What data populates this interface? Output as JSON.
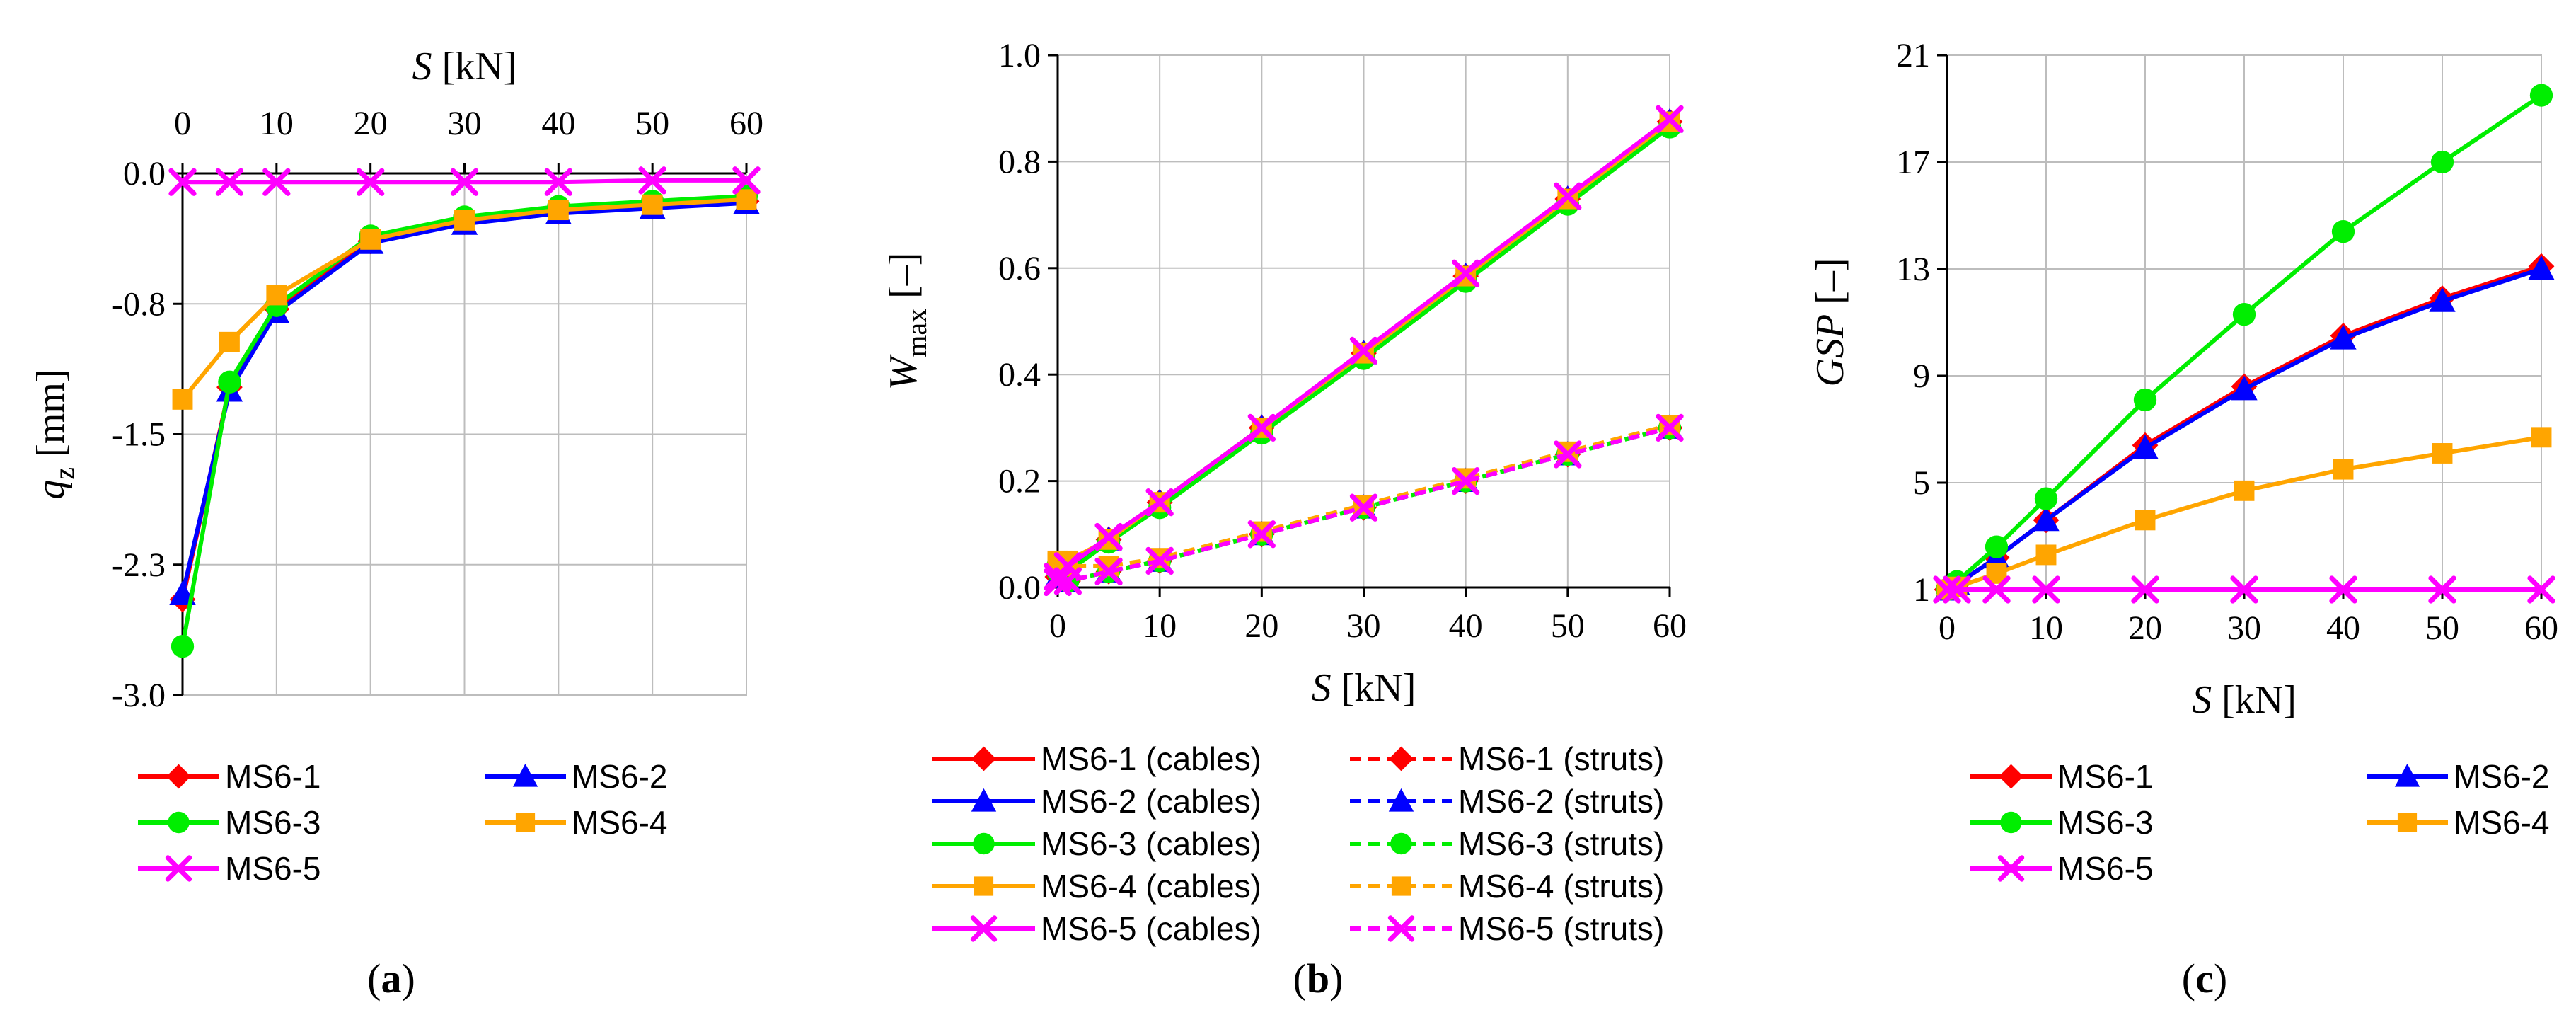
{
  "chart_data": [
    {
      "type": "line",
      "panel": "a",
      "caption": [
        "(",
        "a",
        ")"
      ],
      "xlabel": {
        "var": "S",
        "unit": " [kN]"
      },
      "ylabel": {
        "var": "q",
        "sub": "z",
        "unit": " [mm]"
      },
      "x_axis_position": "top",
      "xlim": [
        0,
        60
      ],
      "ylim": [
        -3.0,
        0.0
      ],
      "x_ticks": [
        0,
        10,
        20,
        30,
        40,
        50,
        60
      ],
      "x_tick_labels": [
        "0",
        "10",
        "20",
        "30",
        "40",
        "50",
        "60"
      ],
      "y_ticks": [
        0.0,
        -0.75,
        -1.5,
        -2.25,
        -3.0
      ],
      "y_tick_labels": [
        "0.0",
        "-0.8",
        "-1.5",
        "-2.3",
        "-3.0"
      ],
      "x": [
        0,
        5,
        10,
        20,
        30,
        40,
        50,
        60
      ],
      "legend_columns": 2,
      "series": [
        {
          "name": "MS6-1",
          "color": "#ff0000",
          "marker": "diamond",
          "dash": false,
          "values": [
            -2.45,
            -1.23,
            -0.78,
            -0.39,
            -0.28,
            -0.22,
            -0.19,
            -0.16
          ]
        },
        {
          "name": "MS6-2",
          "color": "#0000ff",
          "marker": "triangle",
          "dash": false,
          "values": [
            -2.42,
            -1.25,
            -0.8,
            -0.4,
            -0.29,
            -0.23,
            -0.2,
            -0.17
          ]
        },
        {
          "name": "MS6-3",
          "color": "#00ee00",
          "marker": "circle",
          "dash": false,
          "values": [
            -2.72,
            -1.2,
            -0.76,
            -0.36,
            -0.25,
            -0.19,
            -0.16,
            -0.13
          ]
        },
        {
          "name": "MS6-4",
          "color": "#ffa500",
          "marker": "square",
          "dash": false,
          "values": [
            -1.3,
            -0.97,
            -0.7,
            -0.38,
            -0.27,
            -0.21,
            -0.18,
            -0.15
          ]
        },
        {
          "name": "MS6-5",
          "color": "#ff00ff",
          "marker": "x",
          "dash": false,
          "values": [
            -0.05,
            -0.05,
            -0.05,
            -0.05,
            -0.05,
            -0.05,
            -0.04,
            -0.04
          ]
        }
      ]
    },
    {
      "type": "line",
      "panel": "b",
      "caption": [
        "(",
        "b",
        ")"
      ],
      "xlabel": {
        "var": "S",
        "unit": " [kN]"
      },
      "ylabel": {
        "var": "W",
        "sub": "max",
        "unit": " [–]"
      },
      "x_axis_position": "bottom",
      "xlim": [
        0,
        60
      ],
      "ylim": [
        0.0,
        1.0
      ],
      "x_ticks": [
        0,
        10,
        20,
        30,
        40,
        50,
        60
      ],
      "x_tick_labels": [
        "0",
        "10",
        "20",
        "30",
        "40",
        "50",
        "60"
      ],
      "y_ticks": [
        0.0,
        0.2,
        0.4,
        0.6,
        0.8,
        1.0
      ],
      "y_tick_labels": [
        "0.0",
        "0.2",
        "0.4",
        "0.6",
        "0.8",
        "1.0"
      ],
      "x": [
        0,
        1,
        5,
        10,
        20,
        30,
        40,
        50,
        60
      ],
      "legend_columns": 2,
      "series": [
        {
          "name": "MS6-1 (cables)",
          "color": "#ff0000",
          "marker": "diamond",
          "dash": false,
          "values": [
            0.02,
            0.035,
            0.09,
            0.16,
            0.3,
            0.44,
            0.585,
            0.73,
            0.875
          ]
        },
        {
          "name": "MS6-1 (struts)",
          "color": "#ff0000",
          "marker": "diamond",
          "dash": true,
          "values": [
            0.02,
            0.012,
            0.03,
            0.05,
            0.1,
            0.15,
            0.2,
            0.25,
            0.3
          ]
        },
        {
          "name": "MS6-2 (cables)",
          "color": "#0000ff",
          "marker": "triangle",
          "dash": false,
          "values": [
            0.02,
            0.035,
            0.09,
            0.16,
            0.3,
            0.44,
            0.585,
            0.73,
            0.875
          ]
        },
        {
          "name": "MS6-2 (struts)",
          "color": "#0000ff",
          "marker": "triangle",
          "dash": true,
          "values": [
            0.02,
            0.012,
            0.03,
            0.05,
            0.1,
            0.15,
            0.2,
            0.25,
            0.3
          ]
        },
        {
          "name": "MS6-3 (cables)",
          "color": "#00ee00",
          "marker": "circle",
          "dash": false,
          "values": [
            0.04,
            0.03,
            0.085,
            0.15,
            0.29,
            0.43,
            0.575,
            0.72,
            0.865
          ]
        },
        {
          "name": "MS6-3 (struts)",
          "color": "#00ee00",
          "marker": "circle",
          "dash": true,
          "values": [
            0.03,
            0.012,
            0.03,
            0.05,
            0.1,
            0.15,
            0.2,
            0.25,
            0.3
          ]
        },
        {
          "name": "MS6-4 (cables)",
          "color": "#ffa500",
          "marker": "square",
          "dash": false,
          "values": [
            0.045,
            0.05,
            0.09,
            0.16,
            0.3,
            0.44,
            0.585,
            0.73,
            0.875
          ]
        },
        {
          "name": "MS6-4 (struts)",
          "color": "#ffa500",
          "marker": "square",
          "dash": true,
          "values": [
            0.05,
            0.04,
            0.04,
            0.055,
            0.105,
            0.155,
            0.205,
            0.255,
            0.305
          ]
        },
        {
          "name": "MS6-5 (cables)",
          "color": "#ff00ff",
          "marker": "x",
          "dash": false,
          "values": [
            0.02,
            0.04,
            0.095,
            0.16,
            0.3,
            0.445,
            0.59,
            0.735,
            0.88
          ]
        },
        {
          "name": "MS6-5 (struts)",
          "color": "#ff00ff",
          "marker": "x",
          "dash": true,
          "values": [
            0.01,
            0.012,
            0.03,
            0.05,
            0.1,
            0.15,
            0.2,
            0.25,
            0.3
          ]
        }
      ]
    },
    {
      "type": "line",
      "panel": "c",
      "caption": [
        "(",
        "c",
        ")"
      ],
      "xlabel": {
        "var": "S",
        "unit": " [kN]"
      },
      "ylabel": {
        "var": "GSP",
        "sub": "",
        "unit": " [–]"
      },
      "x_axis_position": "bottom",
      "xlim": [
        0,
        60
      ],
      "ylim": [
        1,
        21
      ],
      "x_ticks": [
        0,
        10,
        20,
        30,
        40,
        50,
        60
      ],
      "x_tick_labels": [
        "0",
        "10",
        "20",
        "30",
        "40",
        "50",
        "60"
      ],
      "y_ticks": [
        1,
        5,
        9,
        13,
        17,
        21
      ],
      "y_tick_labels": [
        "1",
        "5",
        "9",
        "13",
        "17",
        "21"
      ],
      "x": [
        0,
        1,
        5,
        10,
        20,
        30,
        40,
        50,
        60
      ],
      "legend_columns": 2,
      "series": [
        {
          "name": "MS6-1",
          "color": "#ff0000",
          "marker": "diamond",
          "dash": false,
          "values": [
            1.0,
            1.2,
            2.2,
            3.6,
            6.4,
            8.6,
            10.5,
            11.9,
            13.1
          ]
        },
        {
          "name": "MS6-2",
          "color": "#0000ff",
          "marker": "triangle",
          "dash": false,
          "values": [
            1.0,
            1.2,
            2.2,
            3.6,
            6.3,
            8.5,
            10.4,
            11.8,
            13.0
          ]
        },
        {
          "name": "MS6-3",
          "color": "#00ee00",
          "marker": "circle",
          "dash": false,
          "values": [
            1.0,
            1.3,
            2.6,
            4.4,
            8.1,
            11.3,
            14.4,
            17.0,
            19.5
          ]
        },
        {
          "name": "MS6-4",
          "color": "#ffa500",
          "marker": "square",
          "dash": false,
          "values": [
            1.0,
            1.1,
            1.6,
            2.3,
            3.6,
            4.7,
            5.5,
            6.1,
            6.7
          ]
        },
        {
          "name": "MS6-5",
          "color": "#ff00ff",
          "marker": "x",
          "dash": false,
          "values": [
            1.0,
            1.0,
            1.0,
            1.0,
            1.0,
            1.0,
            1.0,
            1.0,
            1.0
          ]
        }
      ]
    }
  ]
}
